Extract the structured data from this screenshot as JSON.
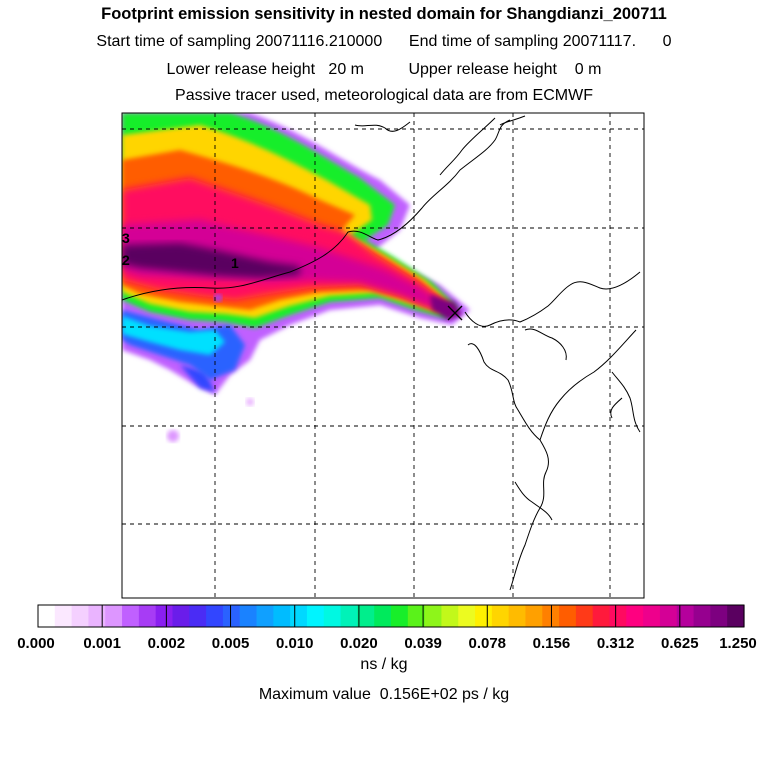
{
  "header": {
    "title": "Footprint emission sensitivity in nested domain for Shangdianzi_200711",
    "sampling_line": "Start time of sampling 20071116.210000      End time of sampling 20071117.      0",
    "release_line": "Lower release height   20 m          Upper release height    0 m",
    "tracer_line": "Passive tracer used, meteorological data are from ECMWF"
  },
  "map": {
    "contour_labels": [
      "3",
      "2",
      "1"
    ],
    "receptor_marker": "x",
    "colors": {
      "land_outline": "#000000",
      "grid": "#000000"
    }
  },
  "colorbar": {
    "tick_labels": [
      "0.000",
      "0.001",
      "0.002",
      "0.005",
      "0.010",
      "0.020",
      "0.039",
      "0.078",
      "0.156",
      "0.312",
      "0.625",
      "1.250"
    ],
    "colors": [
      "#ffffff",
      "#fbe8ff",
      "#f4d0ff",
      "#eab4ff",
      "#dd96ff",
      "#c060ff",
      "#a73cf5",
      "#8a1ff0",
      "#6a1dea",
      "#4a2cf5",
      "#3246ff",
      "#2a62ff",
      "#1a82ff",
      "#10a0ff",
      "#00bcff",
      "#00d8ff",
      "#00f4ff",
      "#00f8e2",
      "#00f2b8",
      "#00ee8c",
      "#00ea5c",
      "#18ee2a",
      "#5af21a",
      "#8ef51a",
      "#c2f81a",
      "#ecfb20",
      "#fff000",
      "#ffd500",
      "#ffbb00",
      "#ffa000",
      "#ff8000",
      "#ff5d00",
      "#ff3a18",
      "#ff1a3c",
      "#ff0a60",
      "#ff0080",
      "#ee008c",
      "#d40096",
      "#b5009c",
      "#96008f",
      "#7d0080",
      "#5a0060"
    ],
    "unit": "ns / kg"
  },
  "footer": {
    "max_value": "Maximum value  0.156E+02 ps / kg"
  }
}
